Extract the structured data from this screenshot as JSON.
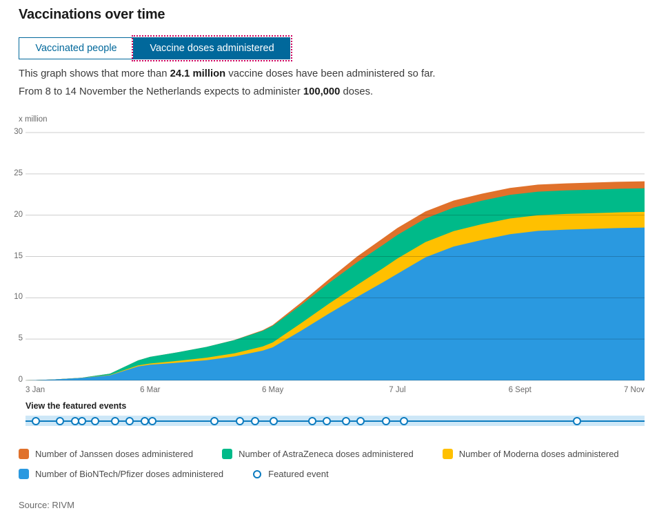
{
  "header": {
    "title": "Vaccinations over time"
  },
  "tabs": [
    {
      "label": "Vaccinated people",
      "active": false
    },
    {
      "label": "Vaccine doses administered",
      "active": true
    }
  ],
  "description": {
    "line1_pre": "This graph shows that more than ",
    "line1_bold": "24.1 million",
    "line1_post": " vaccine doses have been administered so far.",
    "line2_pre": "From 8 to 14 November the Netherlands expects to administer ",
    "line2_bold": "100,000",
    "line2_post": " doses."
  },
  "featured_events": {
    "heading": "View the featured events",
    "marker_positions_pct": [
      1.7,
      5.6,
      8.0,
      9.1,
      11.3,
      14.5,
      16.8,
      19.3,
      20.5,
      30.5,
      34.6,
      37.1,
      40.1,
      46.3,
      48.7,
      51.8,
      54.1,
      58.2,
      61.1,
      89.1
    ],
    "band_color": "#CDE7F7",
    "line_color": "#0C7BBF"
  },
  "chart_data": {
    "type": "area",
    "stacked": true,
    "title": "Vaccine doses administered, cumulative, x million",
    "ylabel": "x million",
    "ylim": [
      0,
      30
    ],
    "yticks": [
      0,
      5,
      10,
      15,
      20,
      25,
      30
    ],
    "grid": true,
    "x_days_since_3_jan": [
      0,
      14,
      28,
      42,
      56,
      62,
      76,
      90,
      104,
      118,
      123,
      137,
      151,
      165,
      178,
      185,
      199,
      213,
      227,
      241,
      255,
      269,
      283,
      296,
      308
    ],
    "x_total_days": 308,
    "xticks": [
      {
        "label": "3 Jan",
        "day": 0,
        "align": "left"
      },
      {
        "label": "6 Mar",
        "day": 62,
        "align": "center"
      },
      {
        "label": "6 May",
        "day": 123,
        "align": "center"
      },
      {
        "label": "7 Jul",
        "day": 185,
        "align": "center"
      },
      {
        "label": "6 Sept",
        "day": 246,
        "align": "center"
      },
      {
        "label": "7 Nov",
        "day": 308,
        "align": "right"
      }
    ],
    "series": [
      {
        "name": "Number of BioNTech/Pfizer doses administered",
        "color": "#2A99E0",
        "values": [
          0,
          0.12,
          0.3,
          0.62,
          1.7,
          1.9,
          2.15,
          2.45,
          2.9,
          3.6,
          4.0,
          6.0,
          8.1,
          10.1,
          11.9,
          12.9,
          14.9,
          16.2,
          17.0,
          17.7,
          18.1,
          18.25,
          18.35,
          18.45,
          18.5
        ]
      },
      {
        "name": "Number of Moderna doses administered",
        "color": "#FFC000",
        "values": [
          0,
          0,
          0.01,
          0.04,
          0.12,
          0.15,
          0.22,
          0.3,
          0.38,
          0.5,
          0.6,
          0.9,
          1.2,
          1.45,
          1.7,
          1.85,
          1.85,
          1.87,
          1.9,
          1.9,
          1.9,
          1.9,
          1.9,
          1.9,
          1.9
        ]
      },
      {
        "name": "Number of AstraZeneca doses administered",
        "color": "#00BA89",
        "values": [
          0,
          0,
          0.02,
          0.15,
          0.6,
          0.8,
          1.05,
          1.3,
          1.6,
          1.9,
          2.0,
          2.2,
          2.5,
          2.75,
          2.82,
          2.85,
          2.85,
          2.85,
          2.85,
          2.85,
          2.85,
          2.85,
          2.85,
          2.85,
          2.85
        ]
      },
      {
        "name": "Number of Janssen doses administered",
        "color": "#E0712B",
        "values": [
          0,
          0,
          0,
          0,
          0,
          0,
          0,
          0,
          0.02,
          0.08,
          0.1,
          0.3,
          0.45,
          0.7,
          0.82,
          0.85,
          0.85,
          0.85,
          0.85,
          0.85,
          0.85,
          0.85,
          0.85,
          0.85,
          0.85
        ]
      }
    ],
    "total_at_end_million": 24.1
  },
  "legend": {
    "rows": [
      [
        {
          "label": "Number of Janssen doses administered",
          "color": "#E0712B",
          "type": "square"
        },
        {
          "label": "Number of AstraZeneca doses administered",
          "color": "#00BA89",
          "type": "square"
        },
        {
          "label": "Number of Moderna doses administered",
          "color": "#FFC000",
          "type": "square"
        }
      ],
      [
        {
          "label": "Number of BioNTech/Pfizer doses administered",
          "color": "#2A99E0",
          "type": "square"
        },
        {
          "label": "Featured event",
          "color": "#0C7BBF",
          "type": "circle"
        }
      ]
    ]
  },
  "footer": {
    "source": "Source: RIVM"
  },
  "colors": {
    "accent_blue": "#01689B",
    "focus_outline": "#CA005D",
    "axis_text": "#696969",
    "gridline": "rgba(0,0,0,0.2)"
  }
}
